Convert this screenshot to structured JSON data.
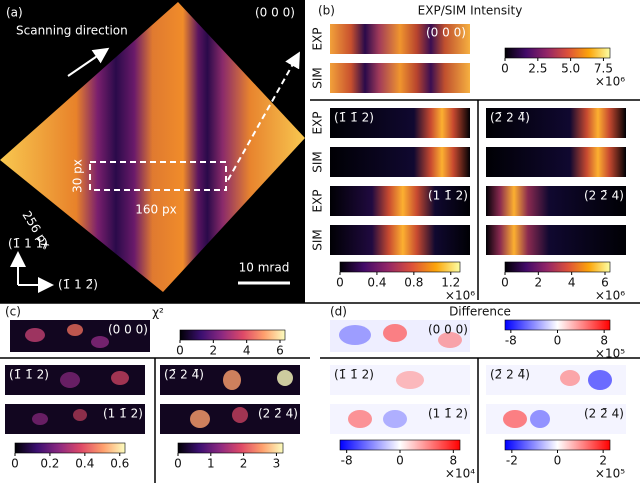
{
  "panel_a": {
    "label": "(a)",
    "reflection": "(0 0 0)",
    "scan_label": "Scanning direction",
    "box_height": "30 px",
    "box_width": "160 px",
    "size": "256 px",
    "axis_up": "(1̄ 1 1)",
    "axis_right": "(1̄ 1 2̄)",
    "scale_bar": "10 mrad"
  },
  "panel_b": {
    "label": "(b)",
    "title": "EXP/SIM Intensity",
    "top": {
      "rows": [
        "EXP",
        "SIM"
      ],
      "reflection": "(0 0 0)",
      "colorbar": {
        "colormap": "inferno",
        "lim": [
          0,
          8
        ],
        "ticks": [
          0,
          2.5,
          {
            "value": 5,
            "label": "5.0"
          },
          7.5
        ],
        "exponent": "×10⁶"
      }
    },
    "left": {
      "rows": [
        "EXP",
        "SIM",
        "EXP",
        "SIM"
      ],
      "reflections": [
        "(1̄ 1̄ 2)",
        "(1 1̄ 2)"
      ],
      "colorbar": {
        "colormap": "inferno",
        "lim": [
          0,
          1.3
        ],
        "ticks": [
          0,
          0.4,
          0.8,
          1.2
        ],
        "exponent": "×10⁶"
      }
    },
    "right": {
      "reflections": [
        "(2̄ 2 4̄)",
        "(2 2̄ 4)"
      ],
      "colorbar": {
        "colormap": "inferno",
        "lim": [
          0,
          6.3
        ],
        "ticks": [
          0,
          2,
          4,
          6
        ],
        "exponent": "×10⁶"
      }
    }
  },
  "panel_c": {
    "label": "(c)",
    "title": "χ²",
    "top": {
      "reflection": "(0 0 0)",
      "colorbar": {
        "colormap": "magma",
        "lim": [
          0,
          6.3
        ],
        "ticks": [
          0,
          2,
          4,
          6
        ]
      }
    },
    "left": {
      "reflections": [
        "(1̄ 1̄ 2)",
        "(1 1̄ 2)"
      ],
      "colorbar": {
        "colormap": "magma",
        "lim": [
          0,
          0.63
        ],
        "ticks": [
          0,
          0.2,
          0.4,
          0.6
        ]
      }
    },
    "right": {
      "reflections": [
        "(2̄ 2 4̄)",
        "(2 2̄ 4)"
      ],
      "colorbar": {
        "colormap": "magma",
        "lim": [
          0,
          3.2
        ],
        "ticks": [
          0,
          1,
          2,
          3
        ]
      }
    }
  },
  "panel_d": {
    "label": "(d)",
    "title": "Difference",
    "top": {
      "reflection": "(0 0 0)",
      "colorbar": {
        "colormap": "bwr",
        "lim": [
          -9,
          9
        ],
        "ticks": [
          -8,
          0,
          8
        ],
        "exponent": "×10⁵"
      }
    },
    "left": {
      "reflections": [
        "(1̄ 1̄ 2)",
        "(1 1̄ 2)"
      ],
      "colorbar": {
        "colormap": "bwr",
        "lim": [
          -9,
          9
        ],
        "ticks": [
          -8,
          0,
          8
        ],
        "exponent": "×10⁴"
      }
    },
    "right": {
      "reflections": [
        "(2̄ 2 4̄)",
        "(2 2̄ 4)"
      ],
      "colorbar": {
        "colormap": "bwr",
        "lim": [
          -2.3,
          2.3
        ],
        "ticks": [
          -2,
          0,
          2
        ],
        "exponent": "×10⁵"
      }
    }
  }
}
